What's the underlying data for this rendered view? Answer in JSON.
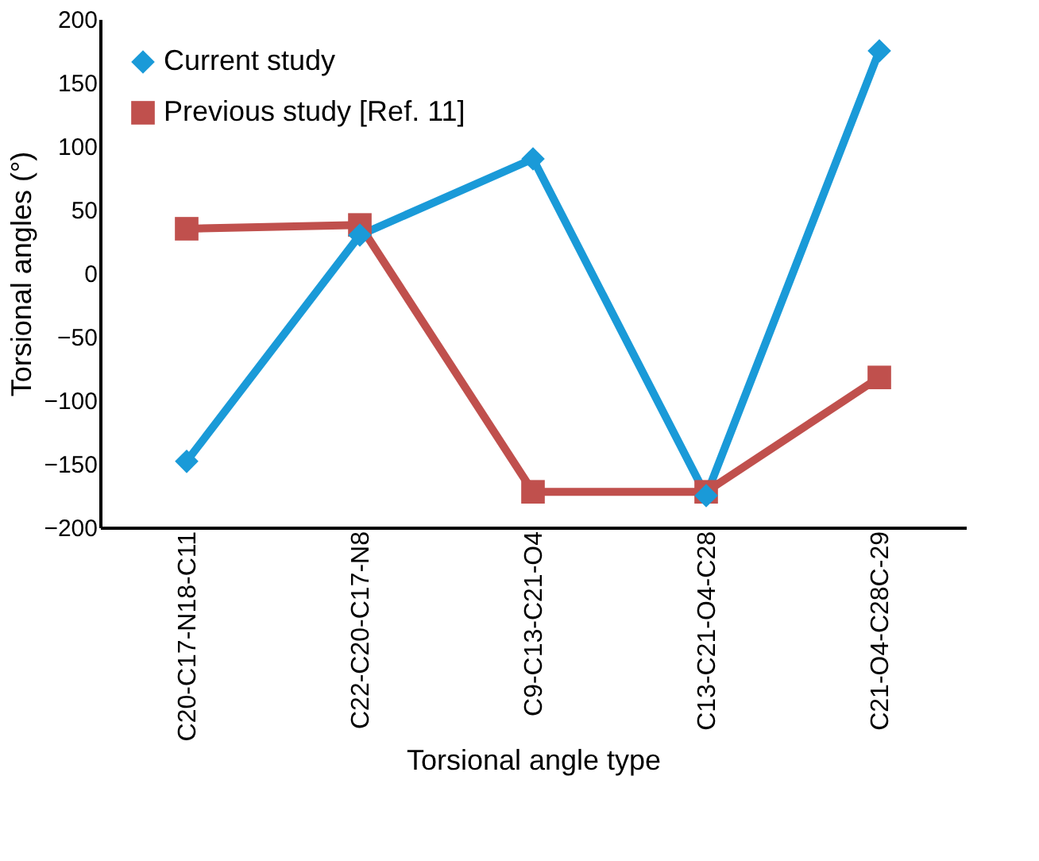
{
  "chart_data": {
    "type": "line",
    "xlabel": "Torsional angle type",
    "ylabel": "Torsional angles (°)",
    "categories": [
      "C20-C17-N18-C11",
      "C22-C20-C17-N8",
      "C9-C13-C21-O4",
      "C13-C21-O4-C28",
      "C21-O4-C28C-29"
    ],
    "series": [
      {
        "name": "Current study",
        "color": "#1a9ad8",
        "marker": "diamond",
        "values": [
          -148,
          30,
          90,
          -175,
          175
        ]
      },
      {
        "name": "Previous study [Ref. 11]",
        "color": "#c0504d",
        "marker": "square",
        "values": [
          35,
          38,
          -172,
          -172,
          -82
        ]
      }
    ],
    "ylim": [
      -200,
      200
    ],
    "yticks": [
      -200,
      -150,
      -100,
      -50,
      0,
      50,
      100,
      150,
      200
    ],
    "grid": false,
    "legend": "top left",
    "line_style": "solid"
  }
}
